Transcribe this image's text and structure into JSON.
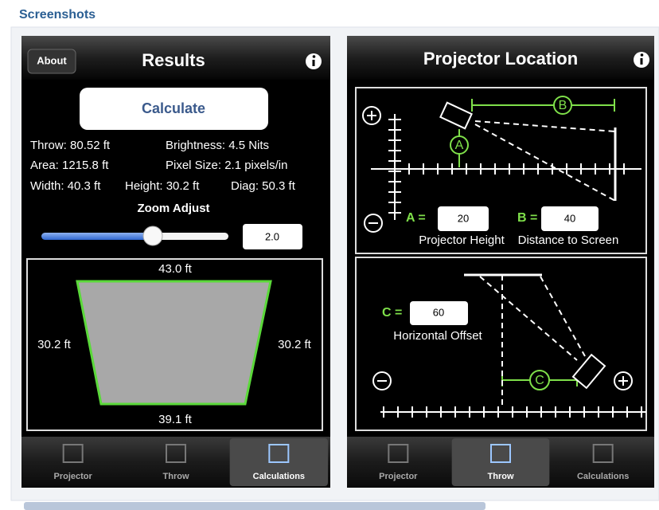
{
  "header": {
    "title": "Screenshots"
  },
  "results_screen": {
    "nav": {
      "about": "About",
      "title": "Results"
    },
    "calculate": "Calculate",
    "stats": [
      [
        "Throw: 80.52 ft",
        "Brightness: 4.5 Nits"
      ],
      [
        "Area: 1215.8 ft",
        "Pixel Size: 2.1 pixels/in"
      ],
      [
        "Width: 40.3 ft",
        "Height: 30.2 ft",
        "Diag: 50.3 ft"
      ]
    ],
    "zoom": {
      "label": "Zoom Adjust",
      "value": "2.0"
    },
    "keystone": {
      "top": "43.0 ft",
      "left": "30.2 ft",
      "right": "30.2 ft",
      "bottom": "39.1 ft"
    },
    "tabs": {
      "labels": [
        "Projector",
        "Throw",
        "Calculations"
      ],
      "active": 2
    }
  },
  "location_screen": {
    "nav": {
      "title": "Projector Location"
    },
    "markers": {
      "a": "A",
      "b": "B",
      "c": "C"
    },
    "fields": [
      {
        "label": "A =",
        "value": "20",
        "caption": "Projector Height"
      },
      {
        "label": "B =",
        "value": "40",
        "caption": "Distance to Screen"
      },
      {
        "label": "C =",
        "value": "60",
        "caption": "Horizontal Offset"
      }
    ],
    "tabs": {
      "labels": [
        "Projector",
        "Throw",
        "Calculations"
      ],
      "active": 1
    }
  }
}
